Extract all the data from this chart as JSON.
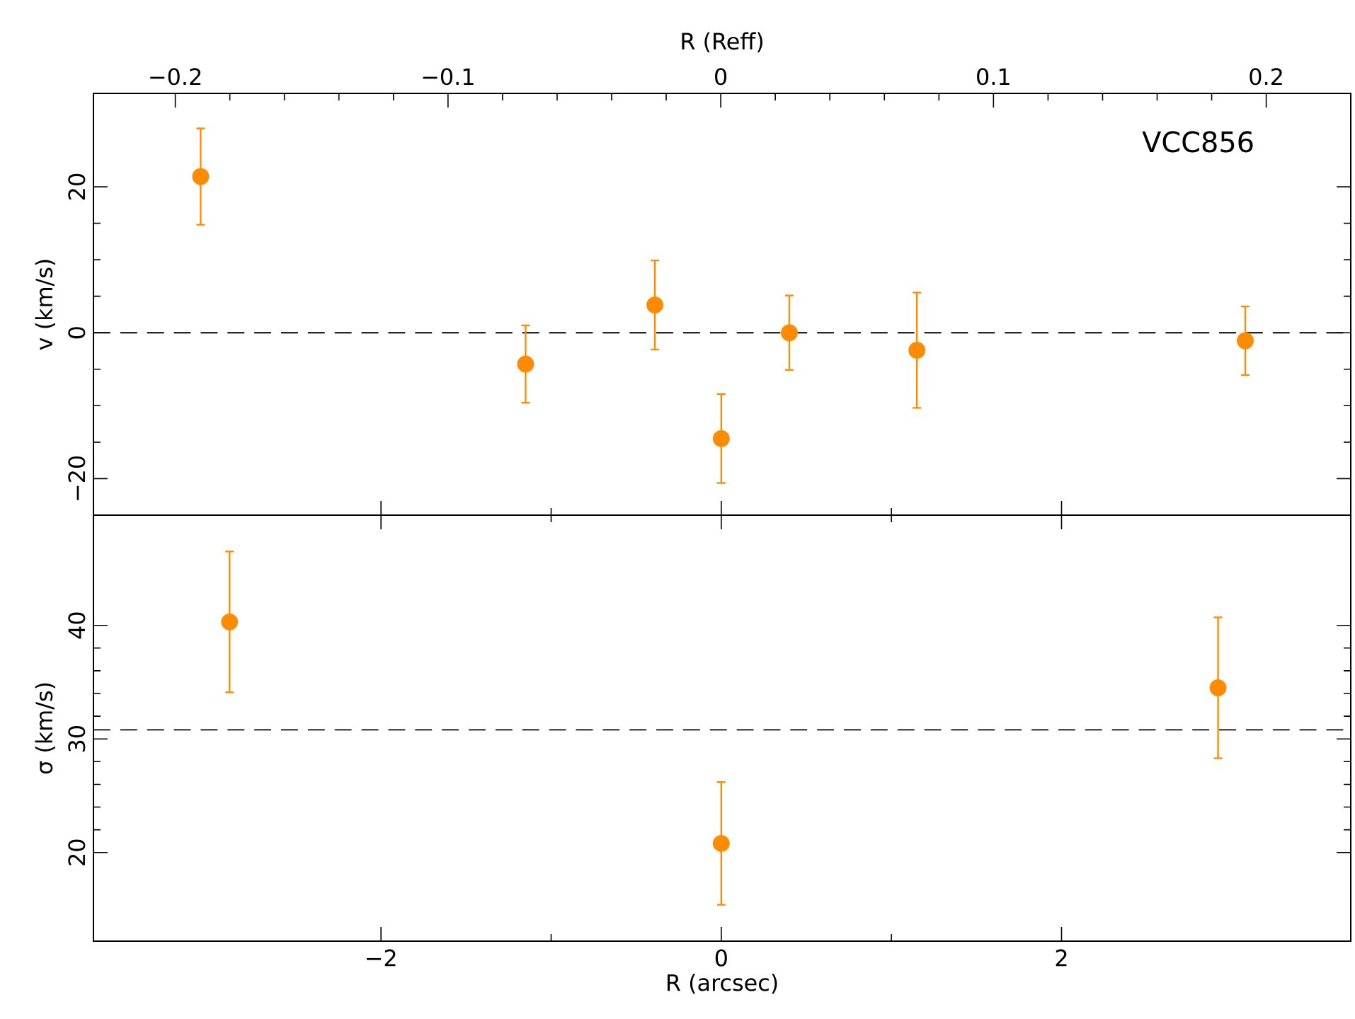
{
  "chart_data": [
    {
      "type": "scatter",
      "xlim": [
        -3.69,
        3.7
      ],
      "xticks": [
        {
          "value": -2,
          "label": null
        },
        {
          "value": 0,
          "label": null
        },
        {
          "value": 2,
          "label": null
        }
      ],
      "x2lim": [
        -0.23,
        0.231
      ],
      "x2ticks": [
        {
          "value": -0.2,
          "label": "−0.2"
        },
        {
          "value": -0.1,
          "label": "−0.1"
        },
        0,
        0.1,
        0.2
      ],
      "x2label": "R (Reff)",
      "tick_labels": "y",
      "ylim": [
        -25.0,
        32.8
      ],
      "yticks": [
        {
          "value": -20,
          "label": "−20"
        },
        0,
        20
      ],
      "ylabel": "v (km/s)",
      "annotations": [
        "VCC856"
      ],
      "marker": "circle",
      "ref_lines": [
        {
          "axis": "y",
          "value": 0,
          "line_style": "dashed",
          "color": "#000000"
        }
      ],
      "series": [
        {
          "color": "#ff8c00",
          "x": [
            -3.06,
            -1.15,
            -0.39,
            0,
            0.4,
            1.15,
            3.08
          ],
          "values": [
            21.4,
            -4.3,
            3.8,
            -14.5,
            0,
            -2.4,
            -1.1
          ],
          "errors": [
            6.6,
            5.3,
            6.1,
            6.1,
            5.1,
            7.9,
            4.7
          ]
        }
      ]
    },
    {
      "type": "scatter",
      "xlim": [
        -3.69,
        3.7
      ],
      "xticks": [
        {
          "value": -2,
          "label": "−2"
        },
        0,
        2
      ],
      "xlabel": "R (arcsec)",
      "ylim": [
        12.2,
        49.7
      ],
      "yticks": [
        20,
        30,
        40
      ],
      "ylabel": "σ (km/s)",
      "marker": "circle",
      "ref_lines": [
        {
          "axis": "y",
          "value": 30.8,
          "line_style": "dashed",
          "color": "#000000"
        }
      ],
      "series": [
        {
          "color": "#ff8c00",
          "x": [
            -2.89,
            0,
            2.92
          ],
          "values": [
            40.3,
            20.8,
            34.5
          ],
          "errors": [
            6.2,
            5.4,
            6.2
          ]
        }
      ]
    }
  ]
}
